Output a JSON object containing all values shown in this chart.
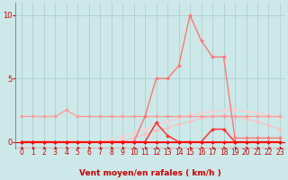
{
  "x": [
    0,
    1,
    2,
    3,
    4,
    5,
    6,
    7,
    8,
    9,
    10,
    11,
    12,
    13,
    14,
    15,
    16,
    17,
    18,
    19,
    20,
    21,
    22,
    23
  ],
  "lines": [
    {
      "color": "#ff0000",
      "y": [
        0,
        0,
        0,
        0,
        0,
        0,
        0,
        0,
        0,
        0,
        0,
        0,
        0,
        0,
        0,
        0,
        0,
        0,
        0,
        0,
        0,
        0,
        0,
        0
      ],
      "linewidth": 1.2,
      "zorder": 6
    },
    {
      "color": "#ff9999",
      "y": [
        2,
        2,
        2,
        2,
        2.5,
        2,
        2,
        2,
        2,
        2,
        2,
        2,
        2,
        2,
        2,
        2,
        2,
        2,
        2,
        2,
        2,
        2,
        2,
        2
      ],
      "linewidth": 0.9,
      "zorder": 4
    },
    {
      "color": "#ffcccc",
      "y": [
        0,
        0,
        0,
        0,
        0,
        0,
        0,
        0,
        0.2,
        0.4,
        0.7,
        1.0,
        1.3,
        1.6,
        1.9,
        2.1,
        2.3,
        2.4,
        2.5,
        2.5,
        2.4,
        2.3,
        2.1,
        1.9
      ],
      "linewidth": 0.7,
      "zorder": 3
    },
    {
      "color": "#ffbbbb",
      "y": [
        0,
        0,
        0,
        0,
        0,
        0,
        0,
        0,
        0,
        0.1,
        0.3,
        0.6,
        0.9,
        1.1,
        1.4,
        1.6,
        1.9,
        2.0,
        2.1,
        2.0,
        1.8,
        1.6,
        1.3,
        1.0
      ],
      "linewidth": 0.7,
      "zorder": 3
    },
    {
      "color": "#ff7777",
      "y": [
        0,
        0,
        0,
        0,
        0,
        0,
        0,
        0,
        0,
        0,
        0,
        2,
        5,
        5,
        6,
        10,
        8,
        6.7,
        6.7,
        0.3,
        0.3,
        0.3,
        0.3,
        0.3
      ],
      "linewidth": 1.0,
      "zorder": 5
    },
    {
      "color": "#ff3333",
      "y": [
        0,
        0,
        0,
        0,
        0,
        0,
        0,
        0,
        0,
        0,
        0,
        0,
        1.5,
        0.5,
        0,
        0,
        0,
        1.0,
        1.0,
        0,
        0,
        0,
        0,
        0
      ],
      "linewidth": 1.1,
      "zorder": 5
    }
  ],
  "xlabel": "Vent moyen/en rafales ( km/h )",
  "xlabel_color": "#cc0000",
  "xlabel_fontsize": 6.5,
  "xtick_labels": [
    "0",
    "1",
    "2",
    "3",
    "4",
    "5",
    "6",
    "7",
    "8",
    "9",
    "10",
    "11",
    "12",
    "13",
    "14",
    "15",
    "16",
    "17",
    "18",
    "19",
    "20",
    "21",
    "22",
    "23"
  ],
  "ytick_labels": [
    "0",
    "5",
    "10"
  ],
  "ytick_values": [
    0,
    5,
    10
  ],
  "xlim": [
    -0.5,
    23.5
  ],
  "ylim": [
    -0.5,
    11.0
  ],
  "background_color": "#cce8e8",
  "grid_color": "#aacccc",
  "tick_color": "#cc0000",
  "tick_fontsize": 5.5,
  "arrow_color": "#cc0000",
  "marker": "D",
  "markersize": 2.0
}
